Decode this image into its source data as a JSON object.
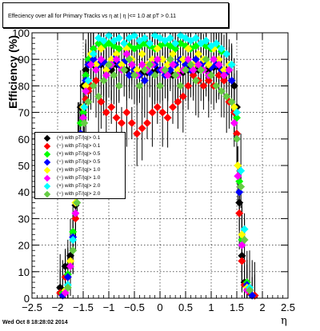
{
  "timestamp": "Wed Oct  8 18:28:02 2014",
  "chart_data": {
    "type": "scatter",
    "title": "Effeciency over all for Primary Tracks vs  η at | η |<= 1.0 at pT > 0.11",
    "xlabel": "η",
    "ylabel": "Efficiency (%)",
    "xlim": [
      -2.5,
      2.5
    ],
    "ylim": [
      0,
      100
    ],
    "xticks": [
      "−2.5",
      "−2",
      "−1.5",
      "−1",
      "−0.5",
      "0",
      "0.5",
      "1",
      "1.5",
      "2",
      "2.5"
    ],
    "yticks": [
      "0",
      "10",
      "20",
      "30",
      "40",
      "50",
      "60",
      "70",
      "80",
      "90",
      "100"
    ],
    "grid": true,
    "legend_position": "left-middle",
    "series": [
      {
        "name": "(+) with pT/|q|> 0.1",
        "color": "#000000",
        "x": [
          -1.95,
          -1.85,
          -1.75,
          -1.65,
          -1.6,
          -1.55,
          -1.5,
          -1.45,
          -1.4,
          -1.35,
          -1.25,
          -1.15,
          -1.05,
          -0.95,
          -0.85,
          -0.75,
          -0.65,
          -0.55,
          -0.45,
          -0.35,
          -0.25,
          -0.15,
          -0.05,
          0.05,
          0.15,
          0.25,
          0.35,
          0.45,
          0.55,
          0.65,
          0.75,
          0.85,
          0.95,
          1.05,
          1.15,
          1.25,
          1.35,
          1.45,
          1.5,
          1.55,
          1.6,
          1.65,
          1.75,
          1.85
        ],
        "y": [
          4,
          12,
          16,
          35,
          60,
          72,
          80,
          86,
          88,
          88,
          87,
          88,
          86,
          86,
          88,
          87,
          86,
          88,
          86,
          85,
          85,
          85,
          86,
          86,
          86,
          84,
          85,
          85,
          86,
          86,
          86,
          86,
          86,
          87,
          87,
          86,
          86,
          80,
          72,
          36,
          16,
          6,
          3,
          1
        ]
      },
      {
        "name": "(−) with pT/|q|> 0.1",
        "color": "#ff0000",
        "x": [
          -1.95,
          -1.85,
          -1.75,
          -1.65,
          -1.6,
          -1.55,
          -1.5,
          -1.45,
          -1.4,
          -1.35,
          -1.25,
          -1.15,
          -1.05,
          -0.95,
          -0.85,
          -0.75,
          -0.65,
          -0.55,
          -0.45,
          -0.35,
          -0.25,
          -0.15,
          -0.05,
          0.05,
          0.15,
          0.25,
          0.35,
          0.45,
          0.55,
          0.65,
          0.75,
          0.85,
          0.95,
          1.05,
          1.15,
          1.25,
          1.35,
          1.45,
          1.5,
          1.55,
          1.6,
          1.65,
          1.75,
          1.85
        ],
        "y": [
          2,
          8,
          14,
          30,
          56,
          66,
          72,
          75,
          78,
          80,
          82,
          74,
          70,
          72,
          68,
          66,
          70,
          66,
          62,
          64,
          66,
          70,
          72,
          70,
          68,
          72,
          74,
          76,
          80,
          84,
          82,
          80,
          82,
          80,
          84,
          82,
          74,
          70,
          62,
          32,
          14,
          5,
          2,
          1
        ]
      },
      {
        "name": "(+) with pT/|q|> 0.5",
        "color": "#00ff00",
        "x": [
          -1.9,
          -1.8,
          -1.7,
          -1.6,
          -1.55,
          -1.5,
          -1.45,
          -1.4,
          -1.3,
          -1.2,
          -1.1,
          -1.0,
          -0.9,
          -0.8,
          -0.7,
          -0.6,
          -0.5,
          -0.4,
          -0.3,
          -0.2,
          -0.1,
          0.0,
          0.1,
          0.2,
          0.3,
          0.4,
          0.5,
          0.6,
          0.7,
          0.8,
          0.9,
          1.0,
          1.1,
          1.2,
          1.3,
          1.4,
          1.5,
          1.55,
          1.6,
          1.7,
          1.8
        ],
        "y": [
          2,
          9,
          25,
          50,
          66,
          70,
          84,
          90,
          94,
          96,
          95,
          96,
          95,
          94,
          96,
          95,
          94,
          95,
          96,
          95,
          94,
          95,
          96,
          95,
          94,
          96,
          95,
          94,
          95,
          96,
          95,
          94,
          95,
          93,
          92,
          88,
          68,
          44,
          22,
          6,
          1
        ]
      },
      {
        "name": "(−) with pT/|q|> 0.5",
        "color": "#0000ff",
        "x": [
          -1.9,
          -1.8,
          -1.7,
          -1.6,
          -1.55,
          -1.5,
          -1.45,
          -1.4,
          -1.3,
          -1.2,
          -1.1,
          -1.0,
          -0.9,
          -0.8,
          -0.7,
          -0.6,
          -0.5,
          -0.4,
          -0.3,
          -0.2,
          -0.1,
          0.0,
          0.1,
          0.2,
          0.3,
          0.4,
          0.5,
          0.6,
          0.7,
          0.8,
          0.9,
          1.0,
          1.1,
          1.2,
          1.3,
          1.4,
          1.5,
          1.55,
          1.6,
          1.7,
          1.8
        ],
        "y": [
          1,
          8,
          23,
          48,
          62,
          68,
          82,
          88,
          90,
          88,
          89,
          87,
          90,
          88,
          89,
          84,
          86,
          84,
          82,
          85,
          88,
          86,
          84,
          86,
          88,
          90,
          88,
          86,
          90,
          88,
          89,
          87,
          88,
          86,
          85,
          82,
          60,
          40,
          20,
          5,
          1
        ]
      },
      {
        "name": "(+) with pT/|q|> 1.0",
        "color": "#ffff00",
        "x": [
          -1.85,
          -1.75,
          -1.65,
          -1.58,
          -1.5,
          -1.45,
          -1.35,
          -1.25,
          -1.15,
          -1.05,
          -0.95,
          -0.85,
          -0.75,
          -0.65,
          -0.55,
          -0.45,
          -0.35,
          -0.25,
          -0.15,
          -0.05,
          0.05,
          0.15,
          0.25,
          0.35,
          0.45,
          0.55,
          0.65,
          0.75,
          0.85,
          0.95,
          1.05,
          1.15,
          1.25,
          1.35,
          1.45,
          1.52,
          1.6,
          1.7
        ],
        "y": [
          3,
          14,
          36,
          60,
          72,
          80,
          92,
          88,
          94,
          86,
          90,
          92,
          88,
          94,
          90,
          86,
          92,
          88,
          90,
          94,
          90,
          88,
          92,
          86,
          90,
          94,
          88,
          92,
          90,
          88,
          94,
          90,
          86,
          88,
          72,
          50,
          24,
          4
        ]
      },
      {
        "name": "(−) with pT/|q|> 1.0",
        "color": "#ff00ff",
        "x": [
          -1.85,
          -1.75,
          -1.65,
          -1.58,
          -1.5,
          -1.45,
          -1.35,
          -1.25,
          -1.15,
          -1.05,
          -0.95,
          -0.85,
          -0.75,
          -0.65,
          -0.55,
          -0.45,
          -0.35,
          -0.25,
          -0.15,
          -0.05,
          0.05,
          0.15,
          0.25,
          0.35,
          0.45,
          0.55,
          0.65,
          0.75,
          0.85,
          0.95,
          1.05,
          1.15,
          1.25,
          1.35,
          1.45,
          1.52,
          1.6,
          1.7
        ],
        "y": [
          2,
          12,
          32,
          58,
          68,
          78,
          88,
          86,
          90,
          84,
          88,
          90,
          86,
          92,
          88,
          84,
          88,
          86,
          88,
          90,
          86,
          84,
          88,
          84,
          86,
          90,
          86,
          88,
          86,
          84,
          90,
          88,
          84,
          86,
          66,
          46,
          20,
          3
        ]
      },
      {
        "name": "(+) with pT/|q|> 2.0",
        "color": "#00ffff",
        "x": [
          -1.8,
          -1.7,
          -1.62,
          -1.55,
          -1.48,
          -1.4,
          -1.3,
          -1.2,
          -1.1,
          -1.0,
          -0.9,
          -0.8,
          -0.7,
          -0.6,
          -0.5,
          -0.4,
          -0.3,
          -0.2,
          -0.1,
          0.0,
          0.1,
          0.2,
          0.3,
          0.4,
          0.5,
          0.6,
          0.7,
          0.8,
          0.9,
          1.0,
          1.1,
          1.2,
          1.3,
          1.4,
          1.5,
          1.58,
          1.65,
          1.75
        ],
        "y": [
          5,
          22,
          40,
          58,
          72,
          82,
          92,
          98,
          97,
          99,
          97,
          98,
          96,
          98,
          99,
          97,
          98,
          96,
          99,
          98,
          97,
          98,
          96,
          99,
          98,
          97,
          98,
          96,
          97,
          95,
          96,
          94,
          92,
          88,
          70,
          48,
          26,
          4
        ]
      },
      {
        "name": "(−) with pT/|q|> 2.0",
        "color": "#66cc44",
        "x": [
          -1.8,
          -1.7,
          -1.62,
          -1.55,
          -1.48,
          -1.4,
          -1.3,
          -1.2,
          -1.1,
          -1.0,
          -0.9,
          -0.8,
          -0.7,
          -0.6,
          -0.5,
          -0.4,
          -0.3,
          -0.2,
          -0.1,
          0.0,
          0.1,
          0.2,
          0.3,
          0.4,
          0.5,
          0.6,
          0.7,
          0.8,
          0.9,
          1.0,
          1.1,
          1.2,
          1.3,
          1.4,
          1.5,
          1.58,
          1.65,
          1.75
        ],
        "y": [
          4,
          18,
          36,
          54,
          66,
          74,
          80,
          76,
          82,
          88,
          84,
          80,
          86,
          90,
          84,
          80,
          86,
          88,
          84,
          80,
          86,
          90,
          84,
          80,
          86,
          88,
          82,
          86,
          90,
          84,
          80,
          78,
          76,
          74,
          60,
          42,
          22,
          3
        ]
      }
    ]
  }
}
